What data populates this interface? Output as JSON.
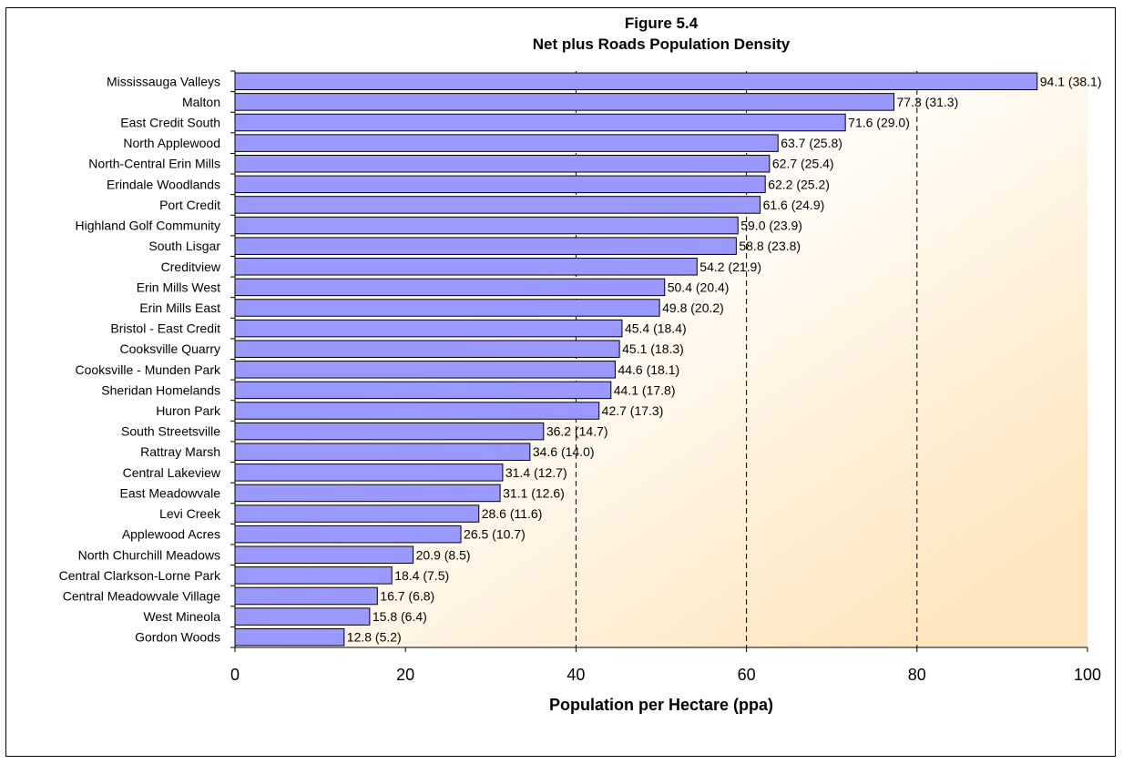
{
  "chart_data": {
    "type": "bar",
    "orientation": "horizontal",
    "title": "Figure 5.4",
    "subtitle": "Net plus Roads Population Density",
    "xlabel": "Population per Hectare (ppa)",
    "ylabel": "",
    "xlim": [
      0,
      100
    ],
    "xticks": [
      0,
      20,
      40,
      60,
      80,
      100
    ],
    "grid": "dashed vertical lines at 40, 60, 80",
    "bar_color": "#9999ff",
    "bar_stroke": "#000000",
    "background_gradient": [
      "#ffffff",
      "#fde5bd"
    ],
    "categories": [
      "Mississauga Valleys",
      "Malton",
      "East Credit South",
      "North Applewood",
      "North-Central Erin Mills",
      "Erindale Woodlands",
      "Port Credit",
      "Highland Golf Community",
      "South Lisgar",
      "Creditview",
      "Erin Mills West",
      "Erin Mills East",
      "Bristol - East Credit",
      "Cooksville Quarry",
      "Cooksville - Munden Park",
      "Sheridan Homelands",
      "Huron Park",
      "South Streetsville",
      "Rattray Marsh",
      "Central Lakeview",
      "East Meadowvale",
      "Levi Creek",
      "Applewood Acres",
      "North Churchill Meadows",
      "Central Clarkson-Lorne Park",
      "Central Meadowvale Village",
      "West Mineola",
      "Gordon Woods"
    ],
    "values": [
      94.1,
      77.3,
      71.6,
      63.7,
      62.7,
      62.2,
      61.6,
      59.0,
      58.8,
      54.2,
      50.4,
      49.8,
      45.4,
      45.1,
      44.6,
      44.1,
      42.7,
      36.2,
      34.6,
      31.4,
      31.1,
      28.6,
      26.5,
      20.9,
      18.4,
      16.7,
      15.8,
      12.8
    ],
    "data_labels": [
      "94.1 (38.1)",
      "77.3 (31.3)",
      "71.6 (29.0)",
      "63.7 (25.8)",
      "62.7 (25.4)",
      "62.2 (25.2)",
      "61.6 (24.9)",
      "59.0 (23.9)",
      "58.8 (23.8)",
      "54.2 (21.9)",
      "50.4 (20.4)",
      "49.8 (20.2)",
      "45.4 (18.4)",
      "45.1 (18.3)",
      "44.6 (18.1)",
      "44.1 (17.8)",
      "42.7 (17.3)",
      "36.2 (14.7)",
      "34.6 (14.0)",
      "31.4 (12.7)",
      "31.1 (12.6)",
      "28.6 (11.6)",
      "26.5 (10.7)",
      "20.9 (8.5)",
      "18.4 (7.5)",
      "16.7 (6.8)",
      "15.8 (6.4)",
      "12.8 (5.2)"
    ]
  }
}
